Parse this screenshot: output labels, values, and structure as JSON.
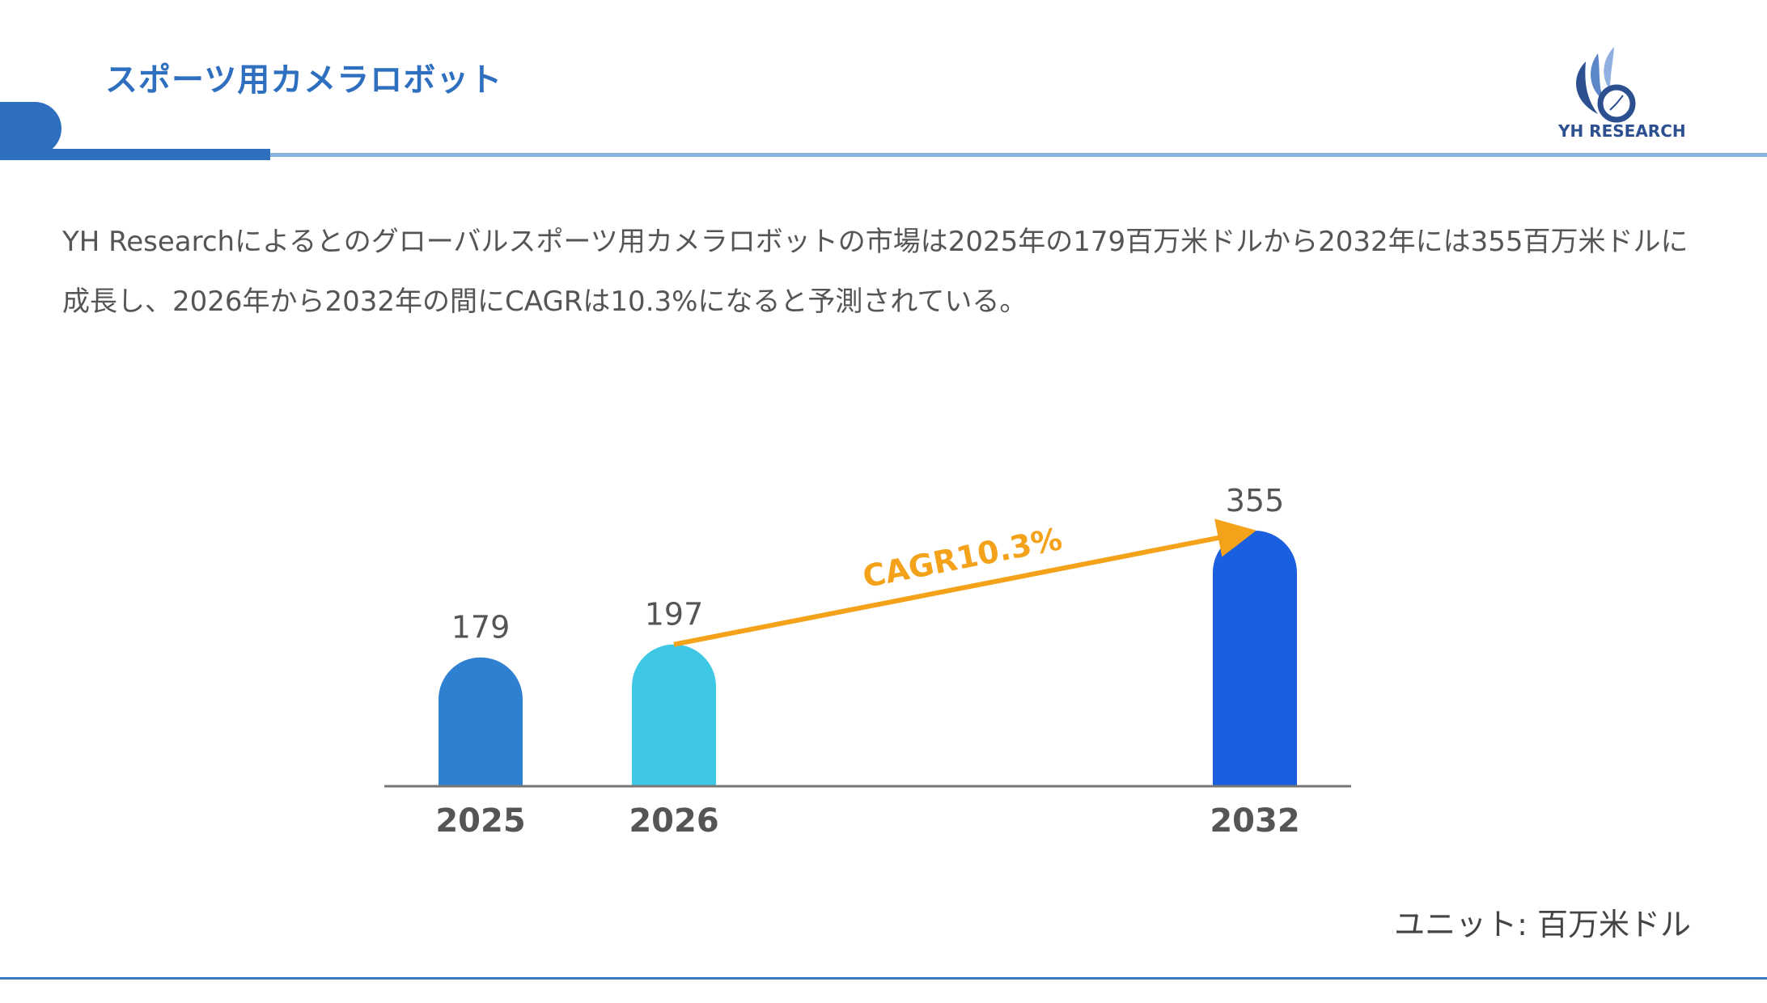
{
  "header": {
    "title": "スポーツ用カメラロボット",
    "logo_text": "YH RESEARCH",
    "accent_color": "#2f6fbf"
  },
  "description": "YH Researchによるとのグローバルスポーツ用カメラロボットの市場は2025年の179百万米ドルから2032年には355百万米ドルに成長し、2026年から2032年の間にCAGRは10.3%になると予測されている。",
  "unit_label": "ユニット: 百万米ドル",
  "chart_data": {
    "type": "bar",
    "categories": [
      "2025",
      "2026",
      "2032"
    ],
    "values": [
      179,
      197,
      355
    ],
    "colors": [
      "#2f80d1",
      "#3ec8e6",
      "#1a5fe0"
    ],
    "annotation": {
      "text": "CAGR10.3%",
      "from": "2026",
      "to": "2032",
      "color": "#f5a21b"
    },
    "unit": "百万米ドル",
    "data_labels": true,
    "grid": false
  }
}
